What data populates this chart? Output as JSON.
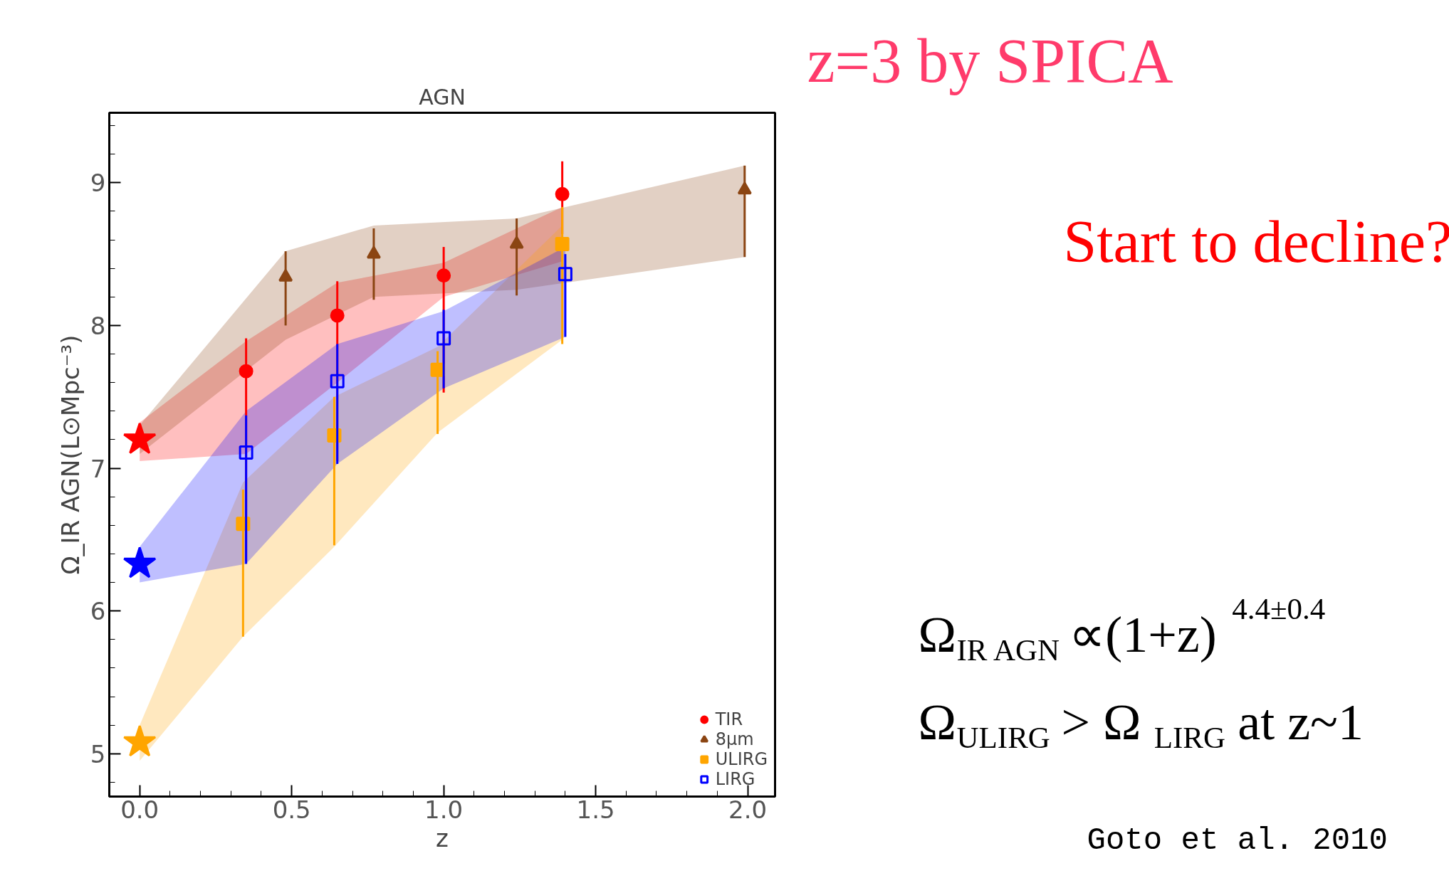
{
  "chart_data": {
    "type": "scatter",
    "title": "AGN",
    "xlabel": "z",
    "ylabel": "Ω_IR AGN(L⊙Mpc⁻³)",
    "xlim": [
      -0.1,
      2.09
    ],
    "ylim": [
      4.7,
      9.49
    ],
    "xticks": [
      {
        "value": 0,
        "label": "0.0"
      },
      0.5,
      {
        "value": 1,
        "label": "1.0"
      },
      1.5,
      {
        "value": 2,
        "label": "2.0"
      }
    ],
    "yticks": [
      5,
      6,
      7,
      8,
      9
    ],
    "grid": false,
    "legend": "bottom right",
    "series": [
      {
        "name": "TIR",
        "color": "#ff0000",
        "marker": "circle",
        "x": [
          0,
          0.35,
          0.65,
          1.0,
          1.39
        ],
        "values": [
          null,
          7.68,
          8.07,
          8.35,
          8.92
        ],
        "errors": [
          null,
          [
            6.35,
            7.91
          ],
          [
            7.05,
            8.31
          ],
          [
            7.53,
            8.55
          ],
          [
            8.64,
            9.15
          ]
        ],
        "lower": [
          7.05,
          7.1,
          7.6,
          8.2,
          8.45
        ],
        "upper": [
          7.32,
          7.89,
          8.3,
          8.44,
          8.83
        ]
      },
      {
        "name": "8μm",
        "color": "#8b4513",
        "marker": "triangle",
        "x": [
          0,
          0.48,
          0.77,
          1.24,
          1.99
        ],
        "values": [
          null,
          8.34,
          8.5,
          8.57,
          8.95
        ],
        "errors": [
          null,
          [
            8.0,
            8.52
          ],
          [
            8.18,
            8.68
          ],
          [
            8.21,
            8.75
          ],
          [
            8.48,
            9.12
          ]
        ],
        "lower": [
          7.1,
          7.9,
          8.2,
          8.25,
          8.48
        ],
        "upper": [
          7.3,
          8.52,
          8.7,
          8.75,
          9.12
        ]
      },
      {
        "name": "ULIRG",
        "color": "#ffa500",
        "marker": "square",
        "x": [
          0,
          0.34,
          0.64,
          0.98,
          1.39
        ],
        "values": [
          null,
          6.61,
          7.23,
          7.69,
          8.57
        ],
        "errors": [
          null,
          [
            5.82,
            6.85
          ],
          [
            6.46,
            7.5
          ],
          [
            7.24,
            7.82
          ],
          [
            7.87,
            8.83
          ]
        ],
        "lower": [
          4.95,
          5.82,
          6.45,
          7.25,
          7.9
        ],
        "upper": [
          5.2,
          6.9,
          7.5,
          7.85,
          8.7
        ]
      },
      {
        "name": "LIRG",
        "color": "#0000ff",
        "marker": "square_open",
        "x": [
          0,
          0.35,
          0.65,
          1.0,
          1.4
        ],
        "values": [
          null,
          7.11,
          7.61,
          7.91,
          8.36
        ],
        "errors": [
          null,
          [
            6.33,
            7.37
          ],
          [
            7.03,
            7.87
          ],
          [
            7.56,
            8.11
          ],
          [
            7.92,
            8.5
          ]
        ],
        "lower": [
          6.2,
          6.33,
          7.03,
          7.56,
          7.92
        ],
        "upper": [
          6.45,
          7.4,
          7.87,
          8.1,
          8.55
        ]
      },
      {
        "color": "#ff0000",
        "marker": "star",
        "x": [
          0
        ],
        "values": [
          7.2
        ]
      },
      {
        "color": "#0000ff",
        "marker": "star",
        "x": [
          0
        ],
        "values": [
          6.33
        ]
      },
      {
        "color": "#ffa500",
        "marker": "star",
        "x": [
          0
        ],
        "values": [
          5.08
        ]
      }
    ],
    "annotations": [
      "z=3 by SPICA",
      "Start to decline?",
      "Ω$_{IR AGN}$ ∝(1+z)$^{4.4±0.4}$",
      "Ω$_{ULIRG}$ > Ω$_{LIRG}$ at z~1",
      "Goto et al. 2010"
    ]
  }
}
